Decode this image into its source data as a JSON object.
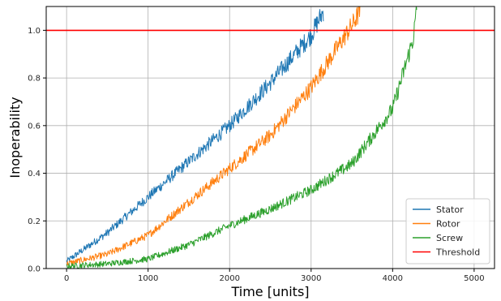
{
  "chart_data": {
    "type": "line",
    "title": "",
    "xlabel": "Time [units]",
    "ylabel": "Inoperability",
    "xlim": [
      -250,
      5250
    ],
    "ylim": [
      0,
      1.1
    ],
    "x_ticks": [
      0,
      1000,
      2000,
      3000,
      4000,
      5000
    ],
    "y_ticks": [
      0.0,
      0.2,
      0.4,
      0.6,
      0.8,
      1.0
    ],
    "x_tick_labels": [
      "0",
      "1000",
      "2000",
      "3000",
      "4000",
      "5000"
    ],
    "y_tick_labels": [
      "0.0",
      "0.2",
      "0.4",
      "0.6",
      "0.8",
      "1.0"
    ],
    "grid": true,
    "legend_position": "bottom-right",
    "series": [
      {
        "name": "Stator",
        "color": "#1f77b4",
        "x": [
          0,
          500,
          1000,
          1500,
          2000,
          2500,
          3000,
          3150
        ],
        "y": [
          0.03,
          0.15,
          0.3,
          0.45,
          0.6,
          0.78,
          0.98,
          1.08
        ]
      },
      {
        "name": "Rotor",
        "color": "#ff7f0e",
        "x": [
          0,
          500,
          1000,
          1500,
          2000,
          2500,
          3000,
          3500,
          3600
        ],
        "y": [
          0.02,
          0.06,
          0.14,
          0.28,
          0.42,
          0.56,
          0.76,
          1.02,
          1.08
        ]
      },
      {
        "name": "Screw",
        "color": "#2ca02c",
        "x": [
          0,
          500,
          1000,
          1500,
          2000,
          2500,
          3000,
          3500,
          4000,
          4250,
          4300
        ],
        "y": [
          0.01,
          0.02,
          0.04,
          0.1,
          0.18,
          0.25,
          0.33,
          0.44,
          0.67,
          0.96,
          1.1
        ]
      },
      {
        "name": "Threshold",
        "color": "#ff0000",
        "x": [
          -250,
          5250
        ],
        "y": [
          1.0,
          1.0
        ]
      }
    ]
  }
}
